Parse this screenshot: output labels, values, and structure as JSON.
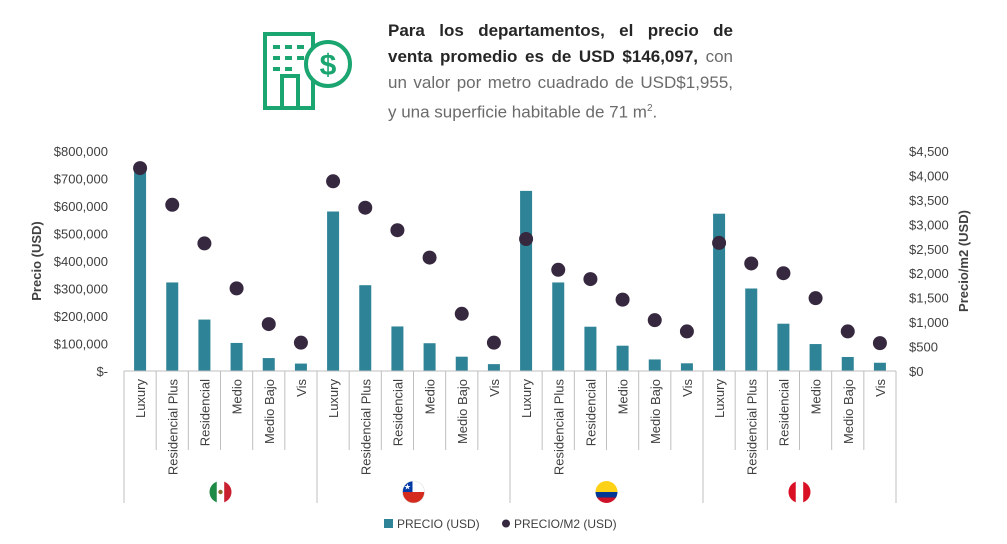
{
  "header": {
    "bold_text": "Para los departamentos, el precio de venta promedio es de USD $146,097,",
    "rest_text_before_sup": " con un valor por metro cuadrado de USD$1,955, y una superficie habitable de 71 m",
    "sup_text": "2",
    "tail_text": ".",
    "icon": "building-dollar-icon",
    "icon_color": "#1aa571"
  },
  "chart_data": {
    "type": "bar+scatter",
    "ylabel_left": "Precio (USD)",
    "ylabel_right": "Precio/m2 (USD)",
    "ylim_left": [
      0,
      800000
    ],
    "ylim_right": [
      0,
      4500
    ],
    "left_ticks": [
      "$800,000",
      "$700,000",
      "$600,000",
      "$500,000",
      "$400,000",
      "$300,000",
      "$200,000",
      "$100,000",
      "$-"
    ],
    "right_ticks": [
      "$4,500",
      "$4,000",
      "$3,500",
      "$3,000",
      "$2,500",
      "$2,000",
      "$1,500",
      "$1,000",
      "$500",
      "$0"
    ],
    "categories": [
      "Luxury",
      "Residencial Plus",
      "Residencial",
      "Medio",
      "Medio Bajo",
      "Vis"
    ],
    "groups": [
      {
        "flag": "flag-mexico-icon",
        "precio": [
          740000,
          322000,
          187000,
          102000,
          47000,
          27000
        ],
        "precio_m2": [
          4150,
          3400,
          2610,
          1690,
          960,
          580
        ]
      },
      {
        "flag": "flag-chile-icon",
        "precio": [
          580000,
          312000,
          162000,
          101000,
          52000,
          25000
        ],
        "precio_m2": [
          3880,
          3340,
          2880,
          2320,
          1170,
          580
        ]
      },
      {
        "flag": "flag-colombia-icon",
        "precio": [
          655000,
          322000,
          161000,
          92000,
          42000,
          28000
        ],
        "precio_m2": [
          2700,
          2070,
          1880,
          1460,
          1040,
          810
        ]
      },
      {
        "flag": "flag-peru-icon",
        "precio": [
          572000,
          300000,
          172000,
          98000,
          51000,
          30000
        ],
        "precio_m2": [
          2620,
          2200,
          2000,
          1490,
          810,
          570
        ]
      }
    ],
    "series": [
      {
        "name": "PRECIO (USD)",
        "color": "#2e8396"
      },
      {
        "name": "PRECIO/M2 (USD)",
        "color": "#36283f"
      }
    ],
    "grid": false,
    "legend": "bottom"
  }
}
